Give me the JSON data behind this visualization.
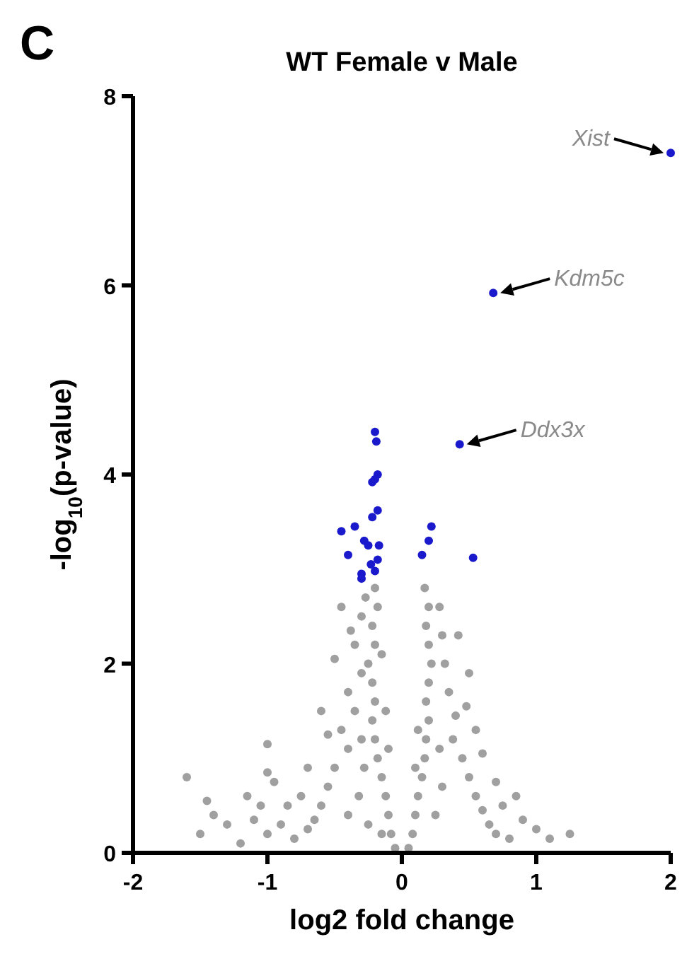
{
  "chart_data": {
    "type": "scatter",
    "title": "WT Female v Male",
    "xlabel": "log2 fold change",
    "ylabel": "-log$_{10}$(p-value)",
    "xlim": [
      -2,
      2
    ],
    "ylim": [
      0,
      8
    ],
    "xticks": [
      -2,
      -1,
      0,
      1,
      2
    ],
    "yticks": [
      0,
      2,
      4,
      6,
      8
    ],
    "grid": false,
    "marker": "circle",
    "annotations": [
      "C",
      {
        "text": "Xist",
        "x": 2.0,
        "y": 7.4
      },
      {
        "text": "Kdm5c",
        "x": 0.68,
        "y": 5.92
      },
      {
        "text": "Ddx3x",
        "x": 0.43,
        "y": 4.32
      }
    ],
    "series": [
      {
        "color": "#a0a0a0",
        "x": [
          -0.05,
          -0.08,
          -0.1,
          -0.12,
          -0.15,
          -0.18,
          -0.2,
          -0.22,
          -0.2,
          -0.22,
          -0.25,
          -0.2,
          -0.22,
          -0.18,
          -0.2,
          -0.3,
          -0.35,
          -0.3,
          -0.4,
          -0.35,
          -0.45,
          -0.4,
          -0.5,
          -0.55,
          -0.6,
          -0.65,
          -0.7,
          -0.8,
          -0.9,
          -0.85,
          -0.75,
          -1.0,
          -1.05,
          -1.1,
          -1.15,
          -1.2,
          -1.3,
          -1.4,
          -1.5,
          -1.6,
          -1.45,
          -1.0,
          -0.95,
          -0.7,
          -0.55,
          -0.6,
          -1.0,
          -0.5,
          -0.45,
          -0.15,
          -0.12,
          -0.1,
          -0.28,
          -0.32,
          -0.4,
          -0.25,
          -0.15,
          -0.3,
          -0.38,
          -0.27,
          0.05,
          0.08,
          0.1,
          0.12,
          0.15,
          0.17,
          0.18,
          0.2,
          0.18,
          0.2,
          0.22,
          0.2,
          0.18,
          0.2,
          0.17,
          0.3,
          0.32,
          0.35,
          0.4,
          0.38,
          0.45,
          0.5,
          0.55,
          0.6,
          0.65,
          0.7,
          0.75,
          0.8,
          0.9,
          1.0,
          1.1,
          1.25,
          0.6,
          0.55,
          0.5,
          0.42,
          0.28,
          0.3,
          0.25,
          0.12,
          0.1,
          0.28,
          0.48,
          0.7,
          0.85
        ],
        "values": [
          0.05,
          0.2,
          0.4,
          0.6,
          0.8,
          1.0,
          1.2,
          1.4,
          1.6,
          1.8,
          2.0,
          2.2,
          2.4,
          2.6,
          2.8,
          2.5,
          2.2,
          1.9,
          1.7,
          1.5,
          1.3,
          1.1,
          0.9,
          0.7,
          0.5,
          0.35,
          0.25,
          0.15,
          0.3,
          0.5,
          0.6,
          0.2,
          0.5,
          0.35,
          0.6,
          0.1,
          0.3,
          0.4,
          0.2,
          0.8,
          0.55,
          0.85,
          0.75,
          0.9,
          1.25,
          1.5,
          1.15,
          2.05,
          2.6,
          2.1,
          1.5,
          1.1,
          0.9,
          0.6,
          0.4,
          0.3,
          0.2,
          1.2,
          2.35,
          2.7,
          0.05,
          0.2,
          0.4,
          0.6,
          0.8,
          1.0,
          1.2,
          1.4,
          1.6,
          1.8,
          2.0,
          2.2,
          2.4,
          2.6,
          2.8,
          2.3,
          2.0,
          1.7,
          1.45,
          1.2,
          1.0,
          0.8,
          0.6,
          0.45,
          0.3,
          0.2,
          0.5,
          0.15,
          0.35,
          0.25,
          0.15,
          0.2,
          1.05,
          1.3,
          1.9,
          2.3,
          1.1,
          0.7,
          0.4,
          1.3,
          0.9,
          2.6,
          1.55,
          0.75,
          0.6
        ]
      },
      {
        "color": "#1a1acc",
        "x": [
          2.0,
          0.68,
          0.43,
          0.53,
          -0.2,
          -0.19,
          -0.18,
          -0.2,
          -0.22,
          -0.18,
          -0.22,
          -0.45,
          -0.35,
          -0.28,
          -0.25,
          -0.17,
          -0.4,
          -0.23,
          -0.18,
          -0.3,
          -0.3,
          -0.2,
          0.22,
          0.2,
          0.15
        ],
        "values": [
          7.4,
          5.92,
          4.32,
          3.12,
          4.45,
          4.35,
          4.0,
          3.95,
          3.92,
          3.62,
          3.55,
          3.4,
          3.45,
          3.3,
          3.25,
          3.25,
          3.15,
          3.05,
          3.1,
          2.95,
          2.9,
          2.98,
          3.45,
          3.3,
          3.15
        ]
      }
    ]
  }
}
